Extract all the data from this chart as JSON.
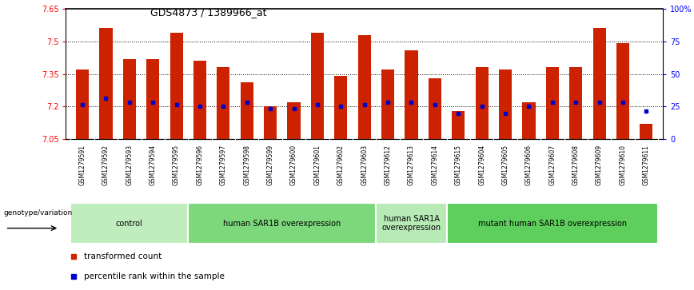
{
  "title": "GDS4873 / 1389966_at",
  "samples": [
    "GSM1279591",
    "GSM1279592",
    "GSM1279593",
    "GSM1279594",
    "GSM1279595",
    "GSM1279596",
    "GSM1279597",
    "GSM1279598",
    "GSM1279599",
    "GSM1279600",
    "GSM1279601",
    "GSM1279602",
    "GSM1279603",
    "GSM1279612",
    "GSM1279613",
    "GSM1279614",
    "GSM1279615",
    "GSM1279604",
    "GSM1279605",
    "GSM1279606",
    "GSM1279607",
    "GSM1279608",
    "GSM1279609",
    "GSM1279610",
    "GSM1279611"
  ],
  "bar_tops": [
    7.37,
    7.56,
    7.42,
    7.42,
    7.54,
    7.41,
    7.38,
    7.31,
    7.2,
    7.22,
    7.54,
    7.34,
    7.53,
    7.37,
    7.46,
    7.33,
    7.18,
    7.38,
    7.37,
    7.22,
    7.38,
    7.38,
    7.56,
    7.49,
    7.12
  ],
  "blue_dots": [
    7.21,
    7.24,
    7.22,
    7.22,
    7.21,
    7.2,
    7.2,
    7.22,
    7.19,
    7.19,
    7.21,
    7.2,
    7.21,
    7.22,
    7.22,
    7.21,
    7.17,
    7.2,
    7.17,
    7.2,
    7.22,
    7.22,
    7.22,
    7.22,
    7.18
  ],
  "bar_bottom": 7.05,
  "y_min": 7.05,
  "y_max": 7.65,
  "dotted_lines": [
    7.5,
    7.35,
    7.2
  ],
  "left_y_ticks": [
    7.05,
    7.2,
    7.35,
    7.5,
    7.65
  ],
  "right_y_ticks_labels": [
    "0",
    "25",
    "50",
    "75",
    "100%"
  ],
  "right_y_values": [
    7.05,
    7.2,
    7.35,
    7.5,
    7.65
  ],
  "groups": [
    {
      "label": "control",
      "start": 0,
      "end": 4,
      "color": "#c0edbe"
    },
    {
      "label": "human SAR1B overexpression",
      "start": 5,
      "end": 12,
      "color": "#7cd87a"
    },
    {
      "label": "human SAR1A\noverexpression",
      "start": 13,
      "end": 15,
      "color": "#b8eab6"
    },
    {
      "label": "mutant human SAR1B overexpression",
      "start": 16,
      "end": 24,
      "color": "#5ecf5c"
    }
  ],
  "genotype_label": "genotype/variation",
  "bar_color": "#cc2200",
  "dot_color": "#0000cc",
  "bg_color": "#ffffff",
  "tick_label_bg": "#d8d8d8",
  "legend_items": [
    {
      "label": "transformed count",
      "color": "#cc2200"
    },
    {
      "label": "percentile rank within the sample",
      "color": "#0000cc"
    }
  ]
}
